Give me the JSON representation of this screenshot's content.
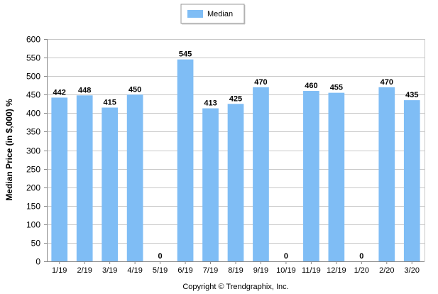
{
  "chart_data": {
    "type": "bar",
    "categories": [
      "1/19",
      "2/19",
      "3/19",
      "4/19",
      "5/19",
      "6/19",
      "7/19",
      "8/19",
      "9/19",
      "10/19",
      "11/19",
      "12/19",
      "1/20",
      "2/20",
      "3/20"
    ],
    "series": [
      {
        "name": "Median",
        "values": [
          442,
          448,
          415,
          450,
          0,
          545,
          413,
          425,
          470,
          0,
          460,
          455,
          0,
          470,
          435
        ]
      }
    ],
    "title": "",
    "xlabel": "",
    "ylabel": "Median Price (in $,000) %",
    "ylim": [
      0,
      600
    ],
    "yticks": [
      0,
      50,
      100,
      150,
      200,
      250,
      300,
      350,
      400,
      450,
      500,
      550,
      600
    ],
    "grid": true,
    "legend_position": "top-center",
    "data_labels": true
  },
  "footer": {
    "copyright": "Copyright © Trendgraphix, Inc."
  },
  "colors": {
    "bar": "#7fbdf5",
    "grid": "#c8c8c8",
    "axis": "#888888",
    "plot_bg": "#ffffff"
  }
}
